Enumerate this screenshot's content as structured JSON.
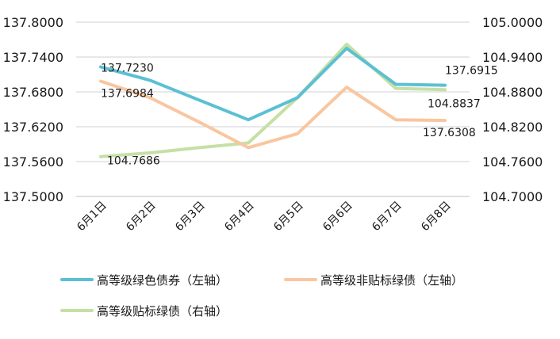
{
  "chart_data": {
    "type": "line",
    "categories": [
      "6月1日",
      "6月2日",
      "6月3日",
      "6月4日",
      "6月5日",
      "6月6日",
      "6月7日",
      "6月8日"
    ],
    "left_axis": {
      "ylim": [
        137.5,
        137.8
      ],
      "ticks": [
        "137.8000",
        "137.7400",
        "137.6800",
        "137.6200",
        "137.5600",
        "137.5000"
      ],
      "tick_values": [
        137.8,
        137.74,
        137.68,
        137.62,
        137.56,
        137.5
      ]
    },
    "right_axis": {
      "ylim": [
        104.7,
        105.0
      ],
      "ticks": [
        "105.0000",
        "104.9400",
        "104.8800",
        "104.8200",
        "104.7600",
        "104.7000"
      ],
      "tick_values": [
        105.0,
        104.94,
        104.88,
        104.82,
        104.76,
        104.7
      ]
    },
    "grid": true,
    "legend_position": "bottom",
    "series": [
      {
        "name": "高等级绿色债券（左轴）",
        "axis": "left",
        "color": "#5bc0d3",
        "values": [
          137.723,
          137.7,
          137.666,
          137.632,
          137.67,
          137.755,
          137.693,
          137.6915
        ],
        "labels": [
          {
            "index": 0,
            "text": "137.7230"
          },
          {
            "index": 7,
            "text": "137.6915"
          }
        ]
      },
      {
        "name": "高等级非贴标绿债（左轴）",
        "axis": "left",
        "color": "#f9c69f",
        "values": [
          137.6984,
          137.67,
          137.628,
          137.584,
          137.608,
          137.688,
          137.632,
          137.6308
        ],
        "labels": [
          {
            "index": 0,
            "text": "137.6984"
          },
          {
            "index": 7,
            "text": "137.6308"
          }
        ]
      },
      {
        "name": "高等级贴标绿债（右轴）",
        "axis": "right",
        "color": "#c5e0a5",
        "values": [
          104.7686,
          104.775,
          104.784,
          104.792,
          104.87,
          104.962,
          104.886,
          104.8837
        ],
        "labels": [
          {
            "index": 0,
            "text": "104.7686"
          },
          {
            "index": 7,
            "text": "104.8837"
          }
        ]
      }
    ]
  }
}
